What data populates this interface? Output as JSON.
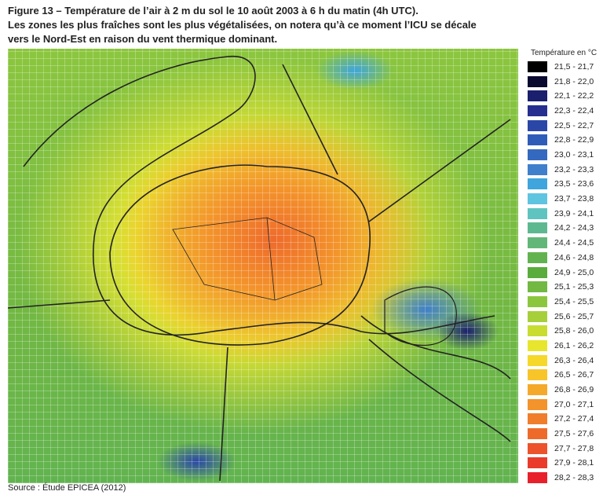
{
  "header": {
    "title_lines": [
      "Figure 13 – Température de l’air à 2 m du sol le 10 août 2003 à 6 h du matin (4h UTC).",
      "Les zones les plus fraîches sont les plus végétalisées, on notera qu’à ce moment l’ICU se décale",
      "vers le Nord-Est en raison du vent thermique dominant."
    ]
  },
  "legend": {
    "title": "Température en °C",
    "items": [
      {
        "label": "21,5 - 21,7",
        "color": "#000000"
      },
      {
        "label": "21,8 - 22,0",
        "color": "#0a0a30"
      },
      {
        "label": "22,1 - 22,2",
        "color": "#1a1f6e"
      },
      {
        "label": "22,3 - 22,4",
        "color": "#262f8f"
      },
      {
        "label": "22,5 - 22,7",
        "color": "#2a47a8"
      },
      {
        "label": "22,8 - 22,9",
        "color": "#2f5cb8"
      },
      {
        "label": "23,0 - 23,1",
        "color": "#3569c0"
      },
      {
        "label": "23,2 - 23,3",
        "color": "#3f7fcb"
      },
      {
        "label": "23,5 - 23,6",
        "color": "#3fa5dc"
      },
      {
        "label": "23,7 - 23,8",
        "color": "#5ec4e0"
      },
      {
        "label": "23,9 - 24,1",
        "color": "#5fc4bf"
      },
      {
        "label": "24,2 - 24,3",
        "color": "#5cb98f"
      },
      {
        "label": "24,4 - 24,5",
        "color": "#62b778"
      },
      {
        "label": "24,6 - 24,8",
        "color": "#62b350"
      },
      {
        "label": "24,9 - 25,0",
        "color": "#5aac3c"
      },
      {
        "label": "25,1 - 25,3",
        "color": "#72b843"
      },
      {
        "label": "25,4 - 25,5",
        "color": "#8cc63f"
      },
      {
        "label": "25,6 - 25,7",
        "color": "#a7cf3b"
      },
      {
        "label": "25,8 - 26,0",
        "color": "#c8dc32"
      },
      {
        "label": "26,1 - 26,2",
        "color": "#e8e52f"
      },
      {
        "label": "26,3 - 26,4",
        "color": "#f5d82a"
      },
      {
        "label": "26,5 - 26,7",
        "color": "#f7c42a"
      },
      {
        "label": "26,8 - 26,9",
        "color": "#f5a92a"
      },
      {
        "label": "27,0 - 27,1",
        "color": "#f3932b"
      },
      {
        "label": "27,2 - 27,4",
        "color": "#f07d2b"
      },
      {
        "label": "27,5 - 27,6",
        "color": "#ee6a2b"
      },
      {
        "label": "27,7 - 27,8",
        "color": "#ec522b"
      },
      {
        "label": "27,9 - 28,1",
        "color": "#ea3a2b"
      },
      {
        "label": "28,2 - 28,3",
        "color": "#e8202b"
      }
    ]
  },
  "footer": {
    "source": "Source : Étude EPICEA (2012)"
  }
}
